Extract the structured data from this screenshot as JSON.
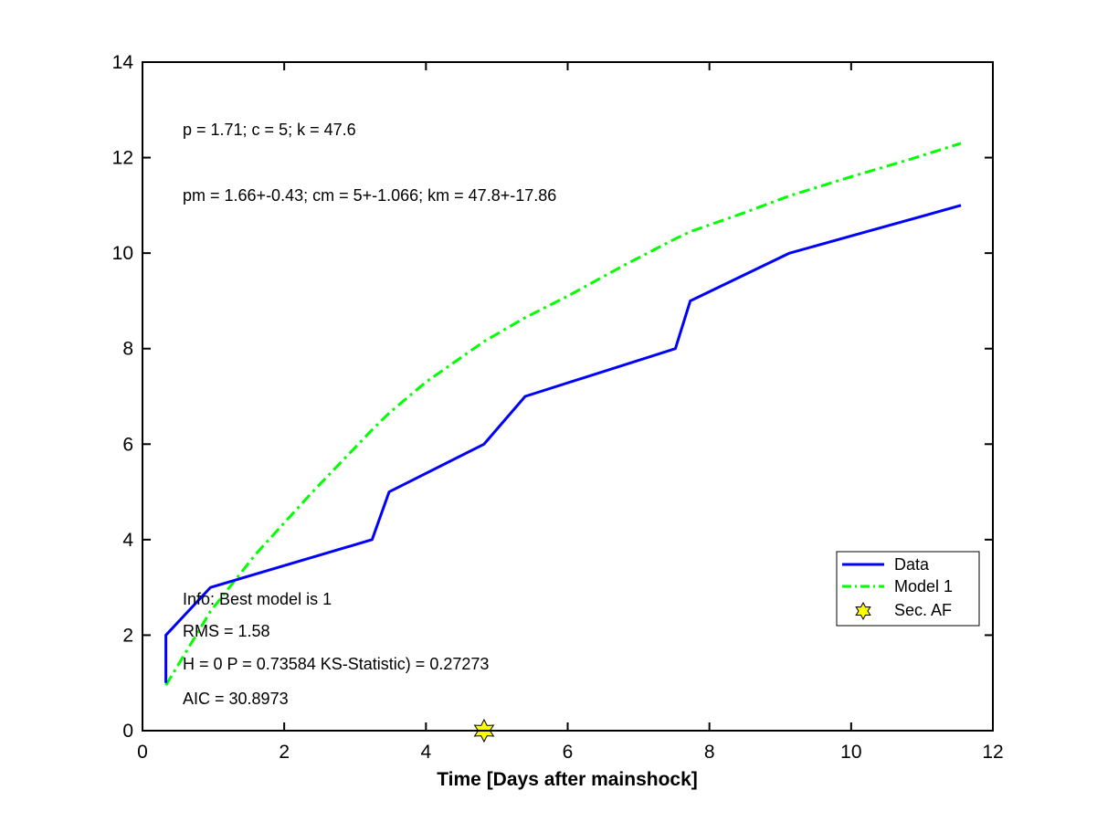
{
  "chart_data": {
    "type": "line",
    "xlabel": "Time [Days after mainshock]",
    "ylabel": "",
    "xlim": [
      0,
      12
    ],
    "ylim": [
      0,
      14
    ],
    "xticks": [
      0,
      2,
      4,
      6,
      8,
      10,
      12
    ],
    "yticks": [
      0,
      2,
      4,
      6,
      8,
      10,
      12,
      14
    ],
    "grid": false,
    "legend_position": "bottom-right",
    "series": [
      {
        "name": "Data",
        "color": "#0000ff",
        "style": "solid",
        "x": [
          0.33,
          0.33,
          0.96,
          3.24,
          3.48,
          4.82,
          5.4,
          7.52,
          7.73,
          9.13,
          11.55
        ],
        "y": [
          1,
          2,
          3,
          4,
          5,
          6,
          7,
          8,
          9,
          10,
          11
        ]
      },
      {
        "name": "Model 1",
        "color": "#00ff00",
        "style": "dash-dot",
        "x": [
          0.33,
          0.96,
          1.6,
          2.4,
          3.24,
          3.48,
          4.0,
          4.82,
          5.4,
          6.0,
          6.8,
          7.52,
          7.73,
          8.5,
          9.13,
          10.0,
          10.8,
          11.55
        ],
        "y": [
          0.95,
          2.5,
          3.7,
          5.0,
          6.3,
          6.65,
          7.3,
          8.15,
          8.65,
          9.1,
          9.75,
          10.3,
          10.45,
          10.85,
          11.2,
          11.6,
          11.95,
          12.3
        ]
      },
      {
        "name": "Sec. AF",
        "color": "#ffff00",
        "style": "marker-hexagram",
        "x": [
          4.82
        ],
        "y": [
          0
        ]
      }
    ],
    "annotations": {
      "params": "p = 1.71; c = 5; k = 47.6",
      "params_mean": "pm = 1.66+-0.43; cm = 5+-1.066; km = 47.8+-17.86",
      "info": "Info: Best model is 1",
      "rms": "RMS = 1.58",
      "ks": "H = 0 P = 0.73584 KS-Statistic) = 0.27273",
      "aic": "AIC = 30.8973"
    }
  }
}
